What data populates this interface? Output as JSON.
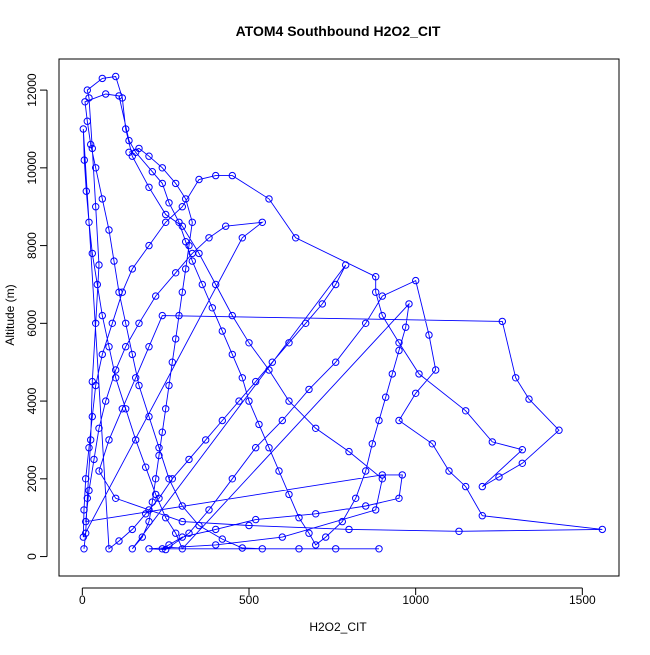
{
  "chart_data": {
    "type": "scatter",
    "title": "ATOM4 Southbound H2O2_CIT",
    "xlabel": "H2O2_CIT",
    "ylabel": "Altitude (m)",
    "xlim": [
      -70,
      1610
    ],
    "ylim": [
      -500,
      12800
    ],
    "x_ticks": [
      0,
      500,
      1000,
      1500
    ],
    "y_ticks": [
      0,
      2000,
      4000,
      6000,
      8000,
      10000,
      12000
    ],
    "grid": false,
    "legend": "none",
    "series": [
      {
        "color": "#0000ff",
        "marker": "open-circle",
        "connected": true,
        "points": [
          [
            5,
            200
          ],
          [
            10,
            600
          ],
          [
            15,
            1500
          ],
          [
            25,
            3000
          ],
          [
            30,
            4500
          ],
          [
            40,
            6000
          ],
          [
            50,
            7500
          ],
          [
            40,
            9000
          ],
          [
            30,
            10500
          ],
          [
            20,
            11800
          ],
          [
            15,
            12000
          ],
          [
            60,
            12300
          ],
          [
            100,
            12350
          ],
          [
            120,
            11800
          ],
          [
            130,
            11000
          ],
          [
            150,
            10300
          ],
          [
            200,
            9500
          ],
          [
            250,
            8800
          ],
          [
            300,
            8500
          ],
          [
            350,
            7800
          ],
          [
            400,
            7000
          ],
          [
            450,
            6200
          ],
          [
            500,
            5500
          ],
          [
            560,
            4800
          ],
          [
            620,
            4000
          ],
          [
            700,
            3300
          ],
          [
            800,
            2700
          ],
          [
            900,
            2000
          ],
          [
            880,
            1200
          ],
          [
            600,
            500
          ],
          [
            400,
            300
          ],
          [
            200,
            200
          ],
          [
            250,
            180
          ],
          [
            320,
            600
          ],
          [
            380,
            1200
          ],
          [
            450,
            2000
          ],
          [
            520,
            2800
          ],
          [
            600,
            3500
          ],
          [
            680,
            4300
          ],
          [
            760,
            5000
          ],
          [
            850,
            6000
          ],
          [
            900,
            6700
          ],
          [
            1000,
            7100
          ],
          [
            1040,
            5700
          ],
          [
            1060,
            4800
          ],
          [
            1000,
            4200
          ],
          [
            950,
            3500
          ],
          [
            1050,
            2900
          ],
          [
            1100,
            2200
          ],
          [
            1150,
            1800
          ],
          [
            1200,
            1050
          ],
          [
            1560,
            700
          ],
          [
            1130,
            650
          ],
          [
            800,
            700
          ],
          [
            500,
            800
          ],
          [
            300,
            900
          ],
          [
            200,
            1200
          ],
          [
            100,
            1500
          ],
          [
            50,
            2200
          ],
          [
            80,
            3000
          ],
          [
            120,
            3800
          ],
          [
            160,
            4600
          ],
          [
            200,
            5400
          ],
          [
            240,
            6200
          ],
          [
            1260,
            6050
          ],
          [
            1300,
            4600
          ],
          [
            1340,
            4050
          ],
          [
            1430,
            3250
          ],
          [
            1320,
            2400
          ],
          [
            1250,
            2050
          ],
          [
            1200,
            1800
          ],
          [
            1320,
            2750
          ],
          [
            1230,
            2950
          ],
          [
            1150,
            3750
          ],
          [
            1010,
            4700
          ],
          [
            950,
            5500
          ],
          [
            900,
            6200
          ],
          [
            880,
            6800
          ],
          [
            880,
            7200
          ],
          [
            640,
            8200
          ],
          [
            560,
            9200
          ],
          [
            450,
            9800
          ],
          [
            400,
            9800
          ],
          [
            350,
            9700
          ],
          [
            300,
            9000
          ],
          [
            250,
            8600
          ],
          [
            200,
            8000
          ],
          [
            150,
            7400
          ],
          [
            120,
            6800
          ],
          [
            90,
            6000
          ],
          [
            60,
            5200
          ],
          [
            40,
            4400
          ],
          [
            30,
            3600
          ],
          [
            20,
            2800
          ],
          [
            10,
            2000
          ],
          [
            5,
            1200
          ],
          [
            3,
            500
          ],
          [
            480,
            8200
          ],
          [
            540,
            8600
          ],
          [
            430,
            8500
          ],
          [
            380,
            8200
          ],
          [
            330,
            7800
          ],
          [
            280,
            7300
          ],
          [
            220,
            6700
          ],
          [
            170,
            6000
          ],
          [
            130,
            5400
          ],
          [
            100,
            4800
          ],
          [
            70,
            4000
          ],
          [
            50,
            3300
          ],
          [
            35,
            2500
          ],
          [
            20,
            1700
          ],
          [
            10,
            900
          ],
          [
            900,
            2100
          ],
          [
            960,
            2100
          ],
          [
            950,
            1500
          ],
          [
            850,
            1300
          ],
          [
            700,
            1100
          ],
          [
            520,
            950
          ],
          [
            400,
            700
          ],
          [
            300,
            500
          ],
          [
            260,
            300
          ],
          [
            240,
            200
          ],
          [
            890,
            200
          ],
          [
            760,
            200
          ],
          [
            650,
            200
          ],
          [
            540,
            200
          ],
          [
            480,
            220
          ],
          [
            420,
            450
          ],
          [
            350,
            800
          ],
          [
            300,
            1300
          ],
          [
            260,
            2000
          ],
          [
            230,
            2800
          ],
          [
            200,
            3600
          ],
          [
            170,
            4400
          ],
          [
            150,
            5200
          ],
          [
            130,
            6000
          ],
          [
            110,
            6800
          ],
          [
            95,
            7600
          ],
          [
            80,
            8400
          ],
          [
            60,
            9200
          ],
          [
            40,
            10000
          ],
          [
            25,
            10600
          ],
          [
            15,
            11200
          ],
          [
            8,
            11700
          ],
          [
            70,
            11900
          ],
          [
            110,
            11850
          ],
          [
            140,
            10700
          ],
          [
            160,
            10400
          ],
          [
            210,
            9900
          ],
          [
            240,
            9600
          ],
          [
            260,
            9100
          ],
          [
            290,
            8600
          ],
          [
            310,
            8100
          ],
          [
            330,
            7600
          ],
          [
            360,
            7000
          ],
          [
            390,
            6400
          ],
          [
            420,
            5800
          ],
          [
            450,
            5200
          ],
          [
            480,
            4600
          ],
          [
            500,
            4000
          ],
          [
            530,
            3400
          ],
          [
            560,
            2800
          ],
          [
            590,
            2200
          ],
          [
            620,
            1600
          ],
          [
            650,
            1000
          ],
          [
            680,
            600
          ],
          [
            700,
            300
          ],
          [
            730,
            500
          ],
          [
            780,
            900
          ],
          [
            820,
            1500
          ],
          [
            850,
            2200
          ],
          [
            870,
            2900
          ],
          [
            890,
            3500
          ],
          [
            910,
            4100
          ],
          [
            930,
            4700
          ],
          [
            950,
            5300
          ],
          [
            970,
            5900
          ],
          [
            980,
            6500
          ],
          [
            300,
            200
          ],
          [
            280,
            600
          ],
          [
            250,
            1000
          ],
          [
            220,
            1600
          ],
          [
            190,
            2300
          ],
          [
            160,
            3000
          ],
          [
            130,
            3800
          ],
          [
            100,
            4600
          ],
          [
            80,
            5400
          ],
          [
            60,
            6200
          ],
          [
            45,
            7000
          ],
          [
            30,
            7800
          ],
          [
            20,
            8600
          ],
          [
            12,
            9400
          ],
          [
            6,
            10200
          ],
          [
            3,
            11000
          ],
          [
            80,
            200
          ],
          [
            110,
            400
          ],
          [
            150,
            700
          ],
          [
            190,
            1100
          ],
          [
            230,
            1500
          ],
          [
            270,
            2000
          ],
          [
            320,
            2500
          ],
          [
            370,
            3000
          ],
          [
            420,
            3500
          ],
          [
            470,
            4000
          ],
          [
            520,
            4500
          ],
          [
            570,
            5000
          ],
          [
            620,
            5500
          ],
          [
            670,
            6000
          ],
          [
            720,
            6500
          ],
          [
            760,
            7000
          ],
          [
            790,
            7500
          ],
          [
            150,
            200
          ],
          [
            180,
            500
          ],
          [
            200,
            900
          ],
          [
            210,
            1400
          ],
          [
            220,
            2000
          ],
          [
            230,
            2600
          ],
          [
            240,
            3200
          ],
          [
            250,
            3800
          ],
          [
            260,
            4400
          ],
          [
            270,
            5000
          ],
          [
            280,
            5600
          ],
          [
            290,
            6200
          ],
          [
            300,
            6800
          ],
          [
            310,
            7400
          ],
          [
            320,
            8000
          ],
          [
            330,
            8600
          ],
          [
            310,
            9200
          ],
          [
            280,
            9600
          ],
          [
            240,
            10000
          ],
          [
            200,
            10300
          ],
          [
            170,
            10500
          ],
          [
            140,
            10400
          ]
        ]
      }
    ]
  }
}
